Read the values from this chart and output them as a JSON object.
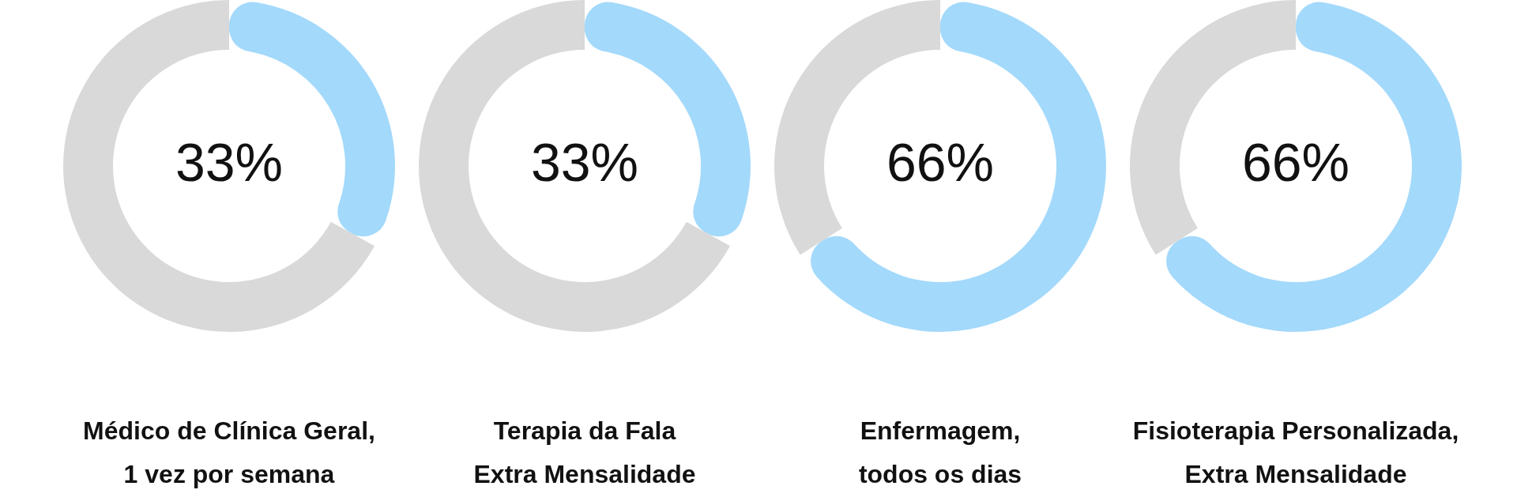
{
  "chart_data": [
    {
      "type": "donut",
      "title": "Médico de Clínica Geral,\n1 vez por semana",
      "categories": [
        null,
        null
      ],
      "values": [
        33,
        67
      ],
      "colors": [
        "#a3d9fb",
        "#d9d9d9"
      ],
      "value_labels": [
        "33%",
        null
      ],
      "legend": false
    },
    {
      "type": "donut",
      "title": "Terapia da Fala\nExtra Mensalidade",
      "categories": [
        null,
        null
      ],
      "values": [
        33,
        67
      ],
      "colors": [
        "#a3d9fb",
        "#d9d9d9"
      ],
      "value_labels": [
        "33%",
        null
      ],
      "legend": false
    },
    {
      "type": "donut",
      "title": "Enfermagem,\ntodos os dias",
      "categories": [
        null,
        null
      ],
      "values": [
        66,
        34
      ],
      "colors": [
        "#a3d9fb",
        "#d9d9d9"
      ],
      "value_labels": [
        "66%",
        null
      ],
      "legend": false
    },
    {
      "type": "donut",
      "title": "Fisioterapia Personalizada,\nExtra Mensalidade",
      "categories": [
        null,
        null
      ],
      "values": [
        66,
        34
      ],
      "colors": [
        "#a3d9fb",
        "#d9d9d9"
      ],
      "value_labels": [
        "66%",
        null
      ],
      "legend": false
    }
  ]
}
